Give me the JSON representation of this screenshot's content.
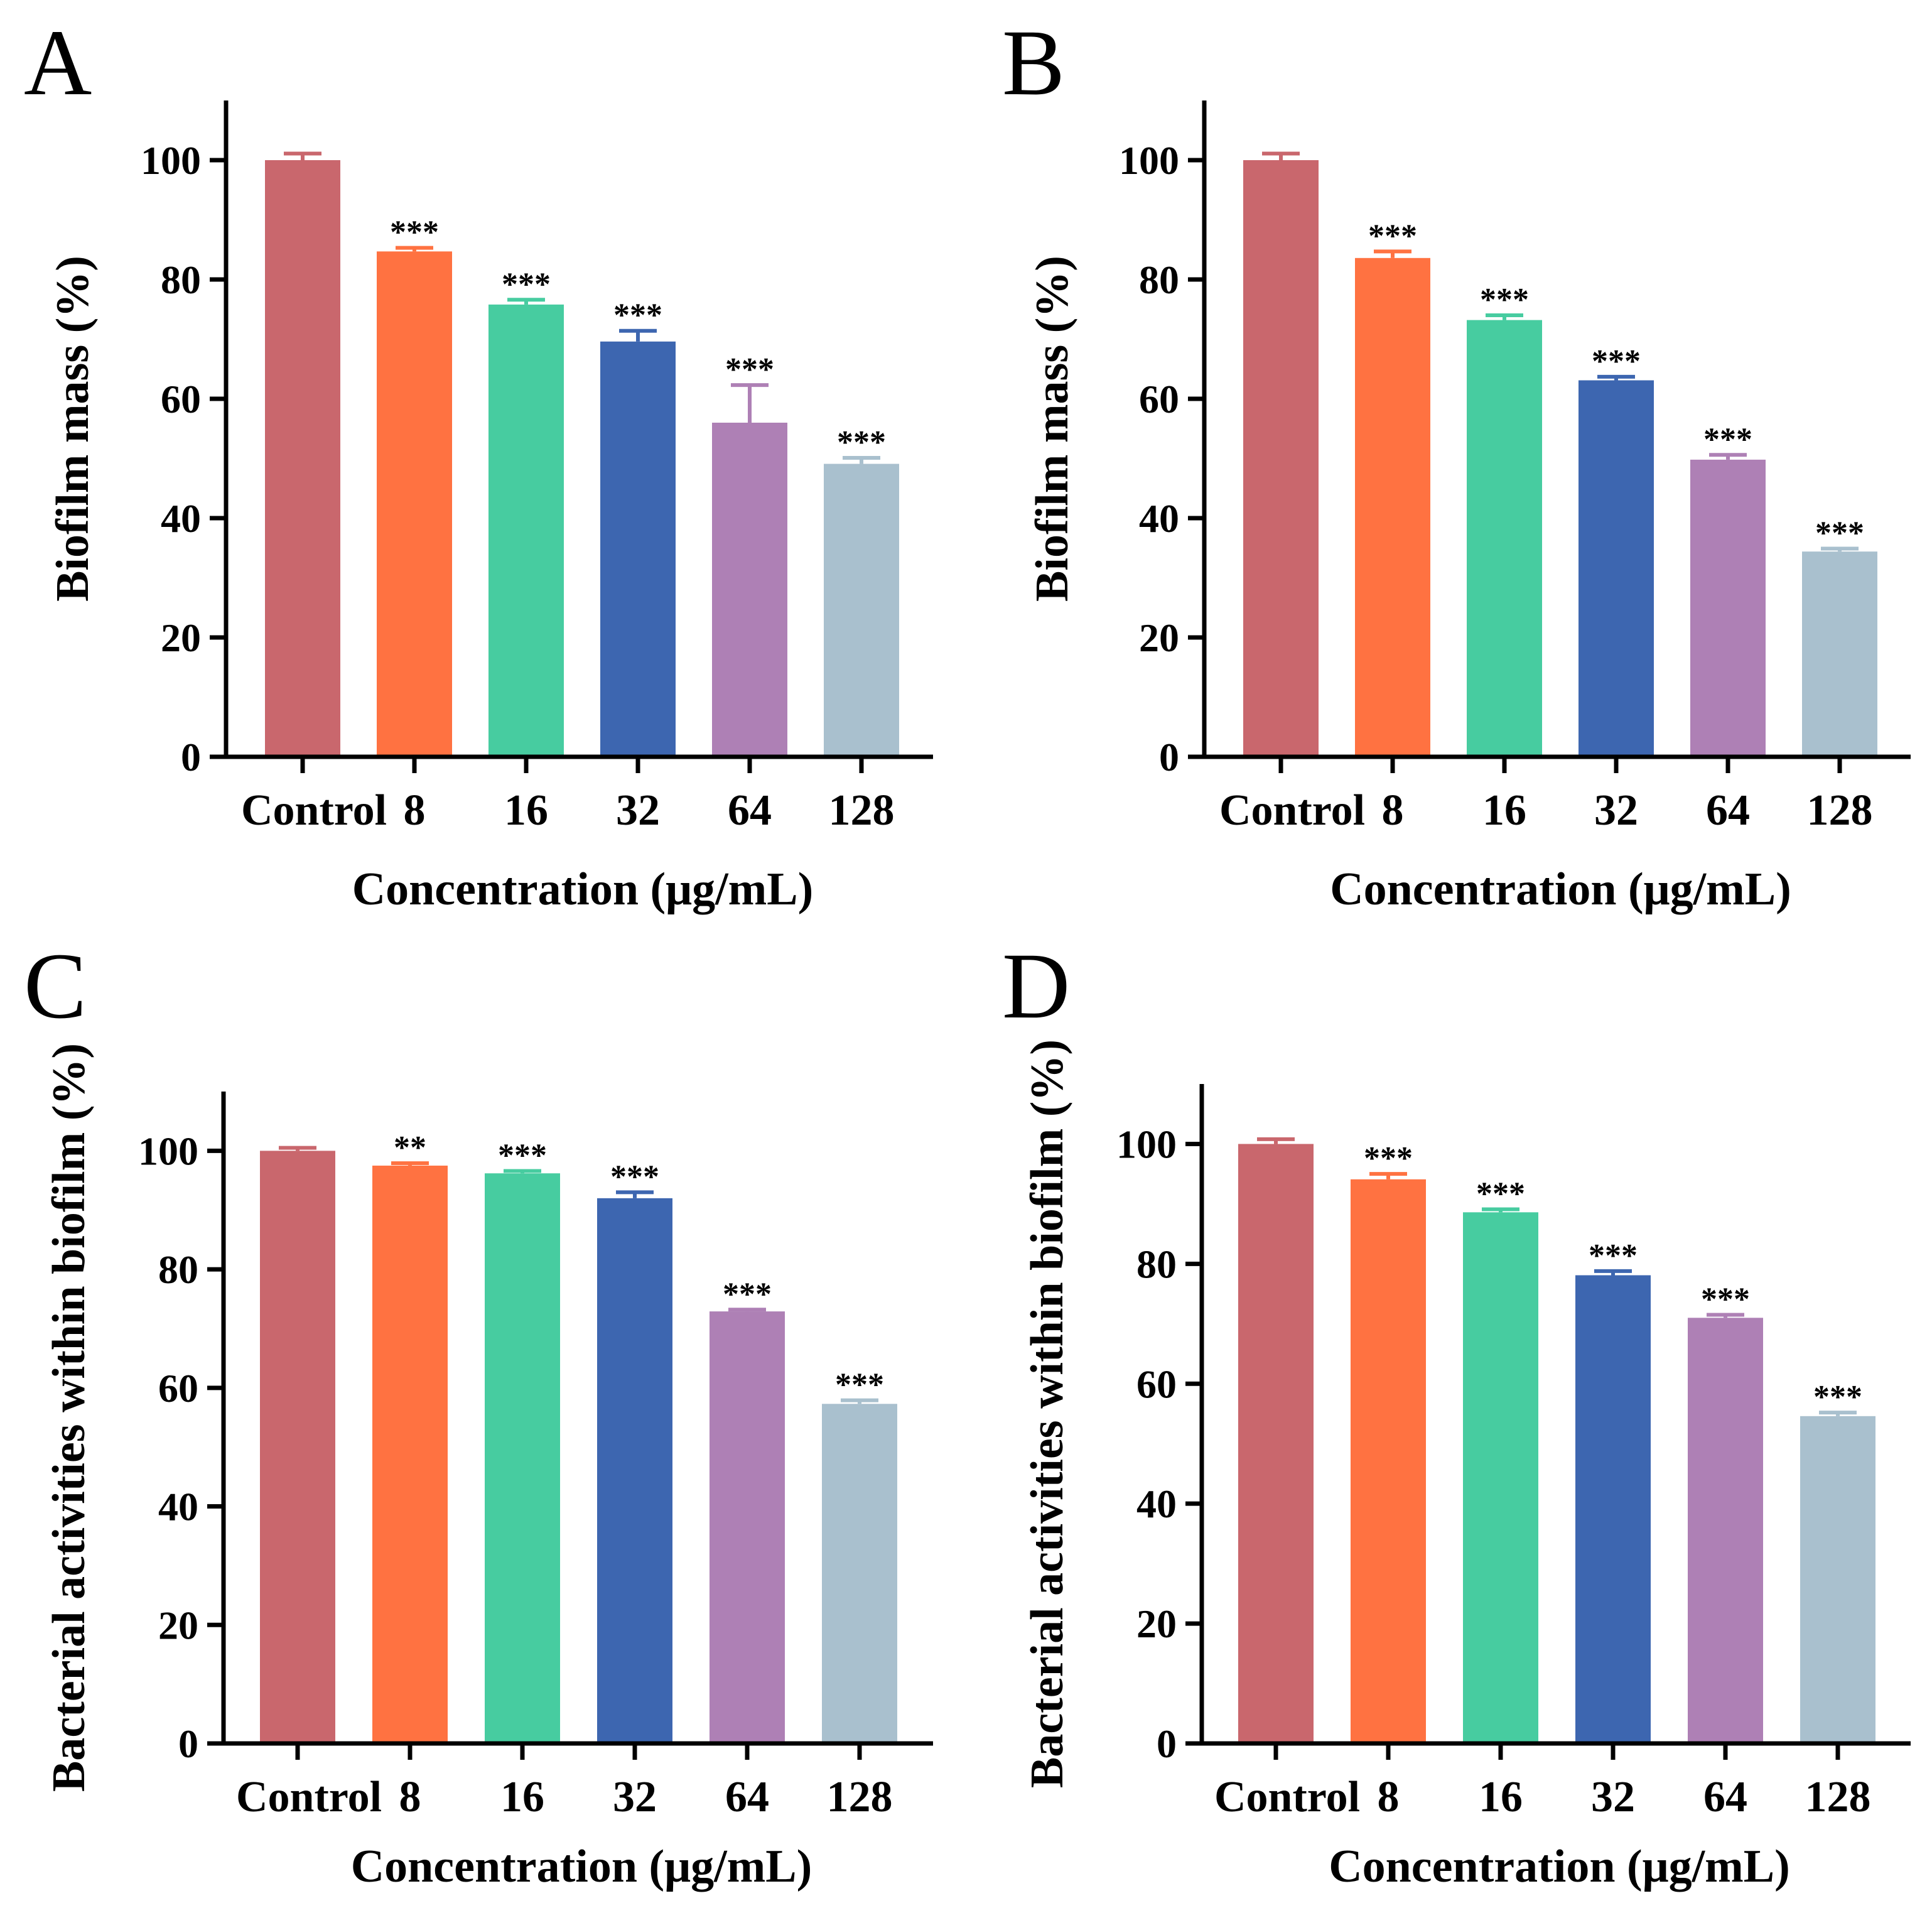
{
  "figure": {
    "bar_colors": [
      "#c9676d",
      "#ff7241",
      "#47cca0",
      "#3d66b0",
      "#ae80b5",
      "#a9c0ce"
    ],
    "axis_color": "#000000"
  },
  "chart_data": [
    {
      "type": "bar",
      "panel_label": "A",
      "categories": [
        "Control",
        "8",
        "16",
        "32",
        "64",
        "128"
      ],
      "values": [
        100,
        84.7,
        75.8,
        69.6,
        56.0,
        49.1
      ],
      "errors": [
        1.1,
        0.6,
        0.8,
        1.8,
        6.3,
        1.0
      ],
      "significance": [
        "",
        "***",
        "***",
        "***",
        "***",
        "***"
      ],
      "xlabel": "Concentration (μg/mL)",
      "ylabel": "Biofilm mass (%)",
      "ylim": [
        0,
        110
      ],
      "yticks": [
        0,
        20,
        40,
        60,
        80,
        100
      ],
      "ytick_labels": [
        "0",
        "20",
        "40",
        "60",
        "80",
        "100"
      ]
    },
    {
      "type": "bar",
      "panel_label": "B",
      "categories": [
        "Control",
        "8",
        "16",
        "32",
        "64",
        "128"
      ],
      "values": [
        100,
        83.6,
        73.2,
        63.1,
        49.8,
        34.4
      ],
      "errors": [
        1.1,
        1.1,
        0.8,
        0.6,
        0.8,
        0.5
      ],
      "significance": [
        "",
        "***",
        "***",
        "***",
        "***",
        "***"
      ],
      "xlabel": "Concentration (μg/mL)",
      "ylabel": "Biofilm mass (%)",
      "ylim": [
        0,
        110
      ],
      "yticks": [
        0,
        20,
        40,
        60,
        80,
        100
      ],
      "ytick_labels": [
        "0",
        "20",
        "40",
        "60",
        "80",
        "100"
      ]
    },
    {
      "type": "bar",
      "panel_label": "C",
      "categories": [
        "Control",
        "8",
        "16",
        "32",
        "64",
        "128"
      ],
      "values": [
        100,
        97.5,
        96.2,
        92.0,
        72.9,
        57.3
      ],
      "errors": [
        0.5,
        0.4,
        0.4,
        1.0,
        0.3,
        0.6
      ],
      "significance": [
        "",
        "**",
        "***",
        "***",
        "***",
        "***"
      ],
      "xlabel": "Concentration (μg/mL)",
      "ylabel": "Bacterial activities within biofilm (%)",
      "ylim": [
        0,
        110
      ],
      "yticks": [
        0,
        20,
        40,
        60,
        80,
        100
      ],
      "ytick_labels": [
        "0",
        "20",
        "40",
        "60",
        "80",
        "100"
      ]
    },
    {
      "type": "bar",
      "panel_label": "D",
      "categories": [
        "Control",
        "8",
        "16",
        "32",
        "64",
        "128"
      ],
      "values": [
        100,
        94.1,
        88.6,
        78.1,
        71.0,
        54.6
      ],
      "errors": [
        0.8,
        0.9,
        0.5,
        0.7,
        0.5,
        0.6
      ],
      "significance": [
        "",
        "***",
        "***",
        "***",
        "***",
        "***"
      ],
      "xlabel": "Concentration (μg/mL)",
      "ylabel": "Bacterial activities within biofilm (%)",
      "ylim": [
        0,
        110
      ],
      "yticks": [
        0,
        20,
        40,
        60,
        80,
        100
      ],
      "ytick_labels": [
        "0",
        "20",
        "40",
        "60",
        "80",
        "100"
      ]
    }
  ]
}
